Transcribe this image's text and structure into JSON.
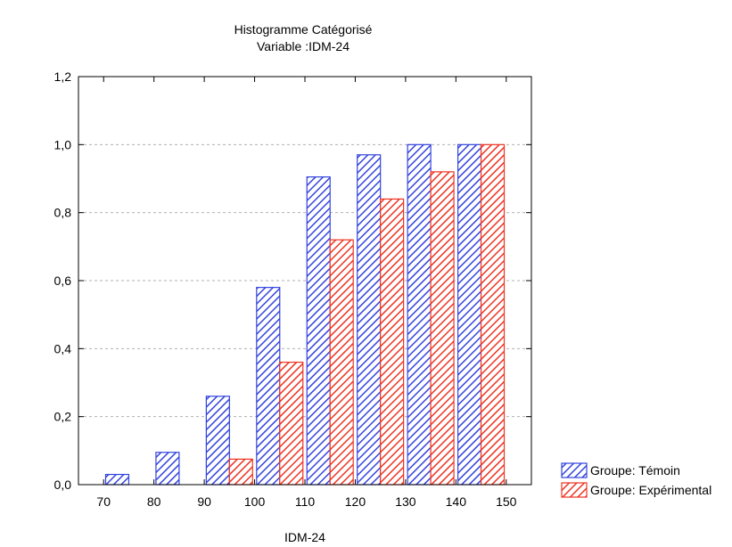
{
  "chart_data": {
    "type": "bar",
    "title": "Histogramme Catégorisé",
    "subtitle": "Variable :IDM-24",
    "xlabel": "IDM-24",
    "ylabel": "",
    "ylim": [
      0,
      1.2
    ],
    "y_ticks": [
      "0,0",
      "0,2",
      "0,4",
      "0,6",
      "0,8",
      "1,0",
      "1,2"
    ],
    "x_ticks": [
      "70",
      "80",
      "90",
      "100",
      "110",
      "120",
      "130",
      "140",
      "150"
    ],
    "xlim": [
      65,
      155
    ],
    "grid": true,
    "legend_position": "bottom-right",
    "bin_width": 10,
    "bin_starts": [
      70,
      80,
      90,
      100,
      110,
      120,
      130,
      140
    ],
    "series": [
      {
        "name": "Groupe: Témoin",
        "color": "#3344dd",
        "values": [
          0.03,
          0.095,
          0.26,
          0.58,
          0.905,
          0.97,
          1.0,
          1.0
        ]
      },
      {
        "name": "Groupe: Expérimental",
        "color": "#ee3322",
        "values": [
          0.0,
          0.0,
          0.075,
          0.36,
          0.72,
          0.84,
          0.92,
          1.0
        ]
      }
    ]
  }
}
